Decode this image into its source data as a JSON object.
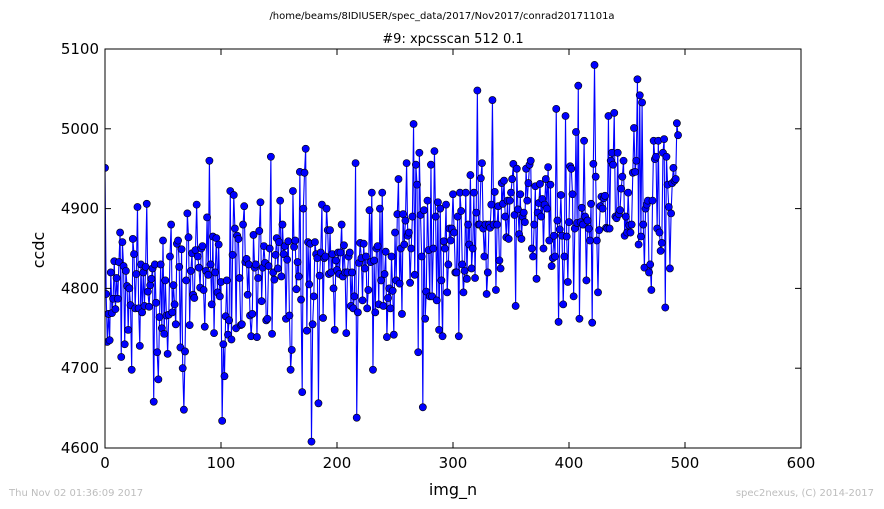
{
  "colors": {
    "series": "#0000ff",
    "marker_edge": "#000000",
    "footer_text": "#bdbdbd"
  },
  "footer": {
    "timestamp": "Thu Nov 02 01:36:09 2017",
    "credit": "spec2nexus, (C) 2014-2017"
  },
  "chart_data": {
    "type": "line",
    "suptitle": "/home/beams/8IDIUSER/spec_data/2017/Nov2017/conrad20171101a",
    "title": "#9: xpcsscan 512 0.1",
    "xlabel": "img_n",
    "ylabel": "ccdc",
    "xlim": [
      0,
      600
    ],
    "ylim": [
      4600,
      5100
    ],
    "xticks": [
      0,
      100,
      200,
      300,
      400,
      500,
      600
    ],
    "yticks": [
      4600,
      4700,
      4800,
      4900,
      5000,
      5100
    ],
    "grid": false,
    "legend": "none",
    "x_start": 0,
    "x_step": 1,
    "series": [
      {
        "marker": "circle",
        "values": [
          4951,
          4793,
          4733,
          4768,
          4735,
          4820,
          4769,
          4787,
          4834,
          4774,
          4813,
          4787,
          4833,
          4870,
          4714,
          4858,
          4828,
          4730,
          4822,
          4803,
          4748,
          4800,
          4779,
          4698,
          4862,
          4843,
          4775,
          4818,
          4902,
          4775,
          4728,
          4830,
          4770,
          4820,
          4778,
          4827,
          4906,
          4796,
          4777,
          4804,
          4812,
          4825,
          4658,
          4830,
          4782,
          4720,
          4686,
          4764,
          4830,
          4750,
          4860,
          4743,
          4810,
          4766,
          4718,
          4767,
          4840,
          4880,
          4770,
          4804,
          4780,
          4755,
          4856,
          4860,
          4827,
          4726,
          4849,
          4700,
          4648,
          4721,
          4810,
          4894,
          4864,
          4754,
          4822,
          4844,
          4792,
          4788,
          4848,
          4905,
          4840,
          4826,
          4801,
          4850,
          4853,
          4798,
          4752,
          4822,
          4889,
          4817,
          4960,
          4830,
          4780,
          4865,
          4744,
          4820,
          4863,
          4795,
          4855,
          4790,
          4808,
          4634,
          4730,
          4690,
          4765,
          4810,
          4742,
          4760,
          4922,
          4736,
          4842,
          4917,
          4875,
          4750,
          4866,
          4862,
          4813,
          4754,
          4755,
          4880,
          4903,
          4833,
          4837,
          4792,
          4830,
          4766,
          4740,
          4768,
          4867,
          4826,
          4830,
          4739,
          4813,
          4872,
          4908,
          4784,
          4826,
          4853,
          4832,
          4760,
          4762,
          4828,
          4850,
          4965,
          4743,
          4820,
          4811,
          4842,
          4863,
          4825,
          4858,
          4910,
          4815,
          4880,
          4843,
          4853,
          4762,
          4836,
          4859,
          4766,
          4698,
          4723,
          4922,
          4852,
          4860,
          4799,
          4833,
          4815,
          4946,
          4786,
          4670,
          4900,
          4945,
          4975,
          4747,
          4858,
          4805,
          4856,
          4608,
          4755,
          4790,
          4858,
          4843,
          4838,
          4656,
          4816,
          4845,
          4905,
          4763,
          4838,
          4840,
          4900,
          4873,
          4818,
          4873,
          4820,
          4843,
          4800,
          4748,
          4835,
          4823,
          4845,
          4818,
          4845,
          4880,
          4815,
          4854,
          4820,
          4744,
          4820,
          4840,
          4845,
          4778,
          4820,
          4775,
          4790,
          4957,
          4638,
          4770,
          4832,
          4857,
          4838,
          4785,
          4856,
          4825,
          4840,
          4775,
          4798,
          4898,
          4833,
          4920,
          4698,
          4835,
          4770,
          4850,
          4853,
          4780,
          4900,
          4810,
          4920,
          4778,
          4818,
          4846,
          4739,
          4788,
          4800,
          4775,
          4840,
          4797,
          4742,
          4870,
          4810,
          4893,
          4937,
          4806,
          4850,
          4768,
          4893,
          4855,
          4885,
          4957,
          4866,
          4870,
          4807,
          4850,
          4890,
          5006,
          4817,
          4955,
          4930,
          4720,
          4970,
          4892,
          4840,
          4651,
          4898,
          4762,
          4796,
          4910,
          4848,
          4790,
          4955,
          4790,
          4850,
          4972,
          4890,
          4785,
          4908,
          4748,
          4900,
          4810,
          4740,
          4859,
          4850,
          4905,
          4795,
          4830,
          4875,
          4860,
          4875,
          4918,
          4870,
          4820,
          4820,
          4890,
          4740,
          4920,
          4897,
          4830,
          4795,
          4822,
          4920,
          4812,
          4880,
          4855,
          4942,
          4825,
          4850,
          4920,
          4813,
          4895,
          5048,
          4880,
          4880,
          4938,
          4957,
          4875,
          4840,
          4880,
          4793,
          4820,
          4880,
          4876,
          4905,
          5036,
          4880,
          4921,
          4798,
          4880,
          4903,
          4835,
          4825,
          4932,
          4906,
          4935,
          4890,
          4864,
          4910,
          4862,
          4910,
          4920,
          4937,
          4956,
          4892,
          4778,
          4950,
          4899,
          4868,
          4918,
          4862,
          4890,
          4895,
          4883,
          4950,
          4910,
          4932,
          4955,
          4960,
          4850,
          4840,
          4880,
          4928,
          4812,
          4895,
          4907,
          4931,
          4890,
          4912,
          4850,
          4905,
          4937,
          4900,
          4952,
          4860,
          4930,
          4828,
          4838,
          4866,
          4840,
          5025,
          4885,
          4758,
          4874,
          4917,
          4866,
          4780,
          4840,
          5016,
          4865,
          4808,
          4883,
          4953,
          4950,
          4918,
          4790,
          4875,
          4996,
          4882,
          5054,
          4762,
          4883,
          4901,
          4880,
          4985,
          4890,
          4810,
          4885,
          4875,
          4860,
          4906,
          4757,
          4956,
          5080,
          4940,
          4860,
          4795,
          4873,
          4903,
          4915,
          4900,
          4913,
          4916,
          4876,
          4875,
          5016,
          4875,
          4960,
          4970,
          4955,
          5020,
          4890,
          4888,
          4970,
          4893,
          4898,
          4925,
          4940,
          4960,
          4866,
          4890,
          4870,
          4920,
          4879,
          4870,
          4880,
          4945,
          5001,
          4946,
          4960,
          5062,
          4855,
          5042,
          4865,
          5033,
          4880,
          4826,
          4900,
          4905,
          4910,
          4820,
          4830,
          4798,
          4910,
          4985,
          4962,
          4965,
          4875,
          4985,
          4870,
          4847,
          4857,
          4970,
          4987,
          4776,
          4965,
          4930,
          4902,
          4825,
          4894,
          4932,
          4951,
          4935,
          4937,
          5007,
          4992
        ]
      }
    ]
  }
}
